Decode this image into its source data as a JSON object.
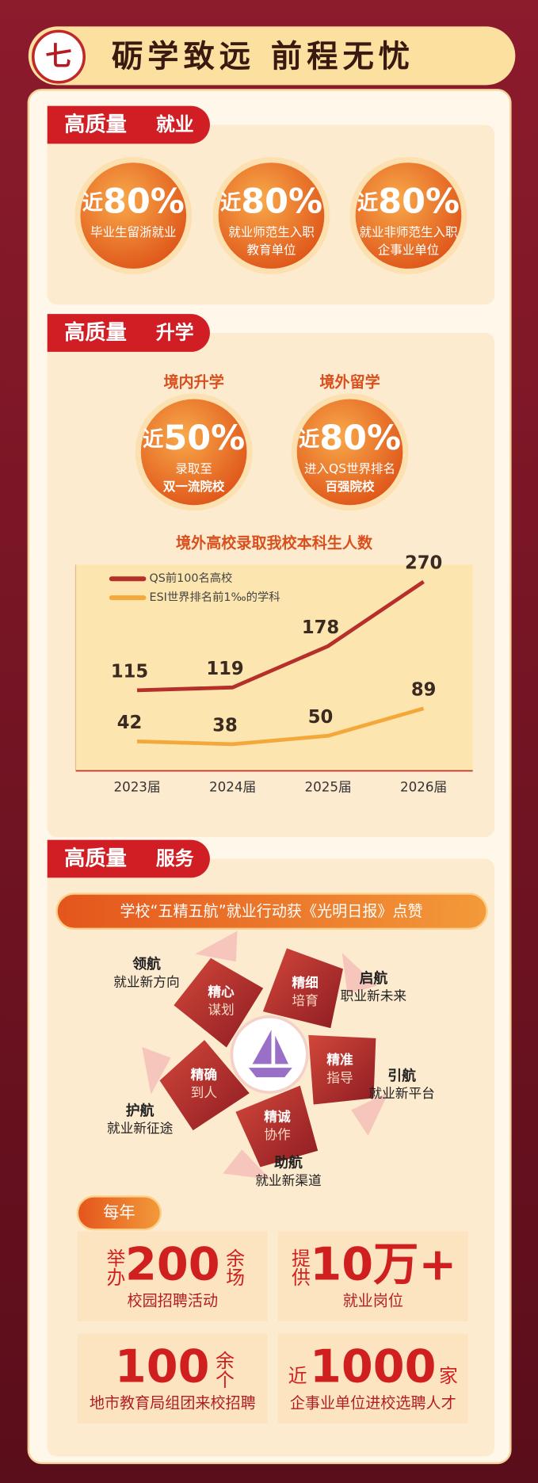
{
  "header": {
    "number": "七",
    "title": "砺学致远 前程无忧"
  },
  "employment": {
    "tag_prefix": "高质量",
    "tag": "就业",
    "stats": [
      {
        "prefix": "近",
        "value": "80%",
        "lines": [
          "毕业生留浙就业"
        ]
      },
      {
        "prefix": "近",
        "value": "80%",
        "lines": [
          "就业师范生入职",
          "教育单位"
        ]
      },
      {
        "prefix": "近",
        "value": "80%",
        "lines": [
          "就业非师范生入职",
          "企事业单位"
        ]
      }
    ]
  },
  "study": {
    "tag_prefix": "高质量",
    "tag": "升学",
    "stats": [
      {
        "heading": "境内升学",
        "prefix": "近",
        "value": "50%",
        "lines": [
          "录取至",
          "双一流院校"
        ]
      },
      {
        "heading": "境外留学",
        "prefix": "近",
        "value": "80%",
        "lines": [
          "进入QS世界排名",
          "百强院校"
        ]
      }
    ],
    "chart": {
      "type": "line",
      "title": "境外高校录取我校本科生人数",
      "categories": [
        "2023届",
        "2024届",
        "2025届",
        "2026届"
      ],
      "series": [
        {
          "name": "QS前100名高校",
          "color": "#b5302a",
          "values": [
            115,
            119,
            178,
            270
          ]
        },
        {
          "name": "ESI世界排名前1‰的学科",
          "color": "#f5a83a",
          "values": [
            42,
            38,
            50,
            89
          ]
        }
      ]
    }
  },
  "service": {
    "tag_prefix": "高质量",
    "tag": "服务",
    "banner": "学校“五精五航”就业行动获《光明日报》点赞",
    "petals": [
      {
        "title": "精心",
        "text": "谋划",
        "label": "领航",
        "desc": "就业新方向"
      },
      {
        "title": "精细",
        "text": "培育",
        "label": "启航",
        "desc": "职业新未来"
      },
      {
        "title": "精准",
        "text": "指导",
        "label": "引航",
        "desc": "就业新平台"
      },
      {
        "title": "精诚",
        "text": "协作",
        "label": "助航",
        "desc": "就业新渠道"
      },
      {
        "title": "精确",
        "text": "到人",
        "label": "护航",
        "desc": "就业新征途"
      }
    ],
    "yearly_tag": "每年",
    "boxes": [
      {
        "prefix": "举办",
        "value": "200",
        "suffix": "余场",
        "desc": "校园招聘活动"
      },
      {
        "prefix": "提供",
        "value": "10万+",
        "desc": "就业岗位"
      },
      {
        "value": "100",
        "suffix": "余个",
        "desc": "地市教育局组团来校招聘"
      },
      {
        "prefix": "近",
        "value": "1000",
        "suffix": "家",
        "desc": "企事业单位进校选聘人才"
      }
    ]
  }
}
